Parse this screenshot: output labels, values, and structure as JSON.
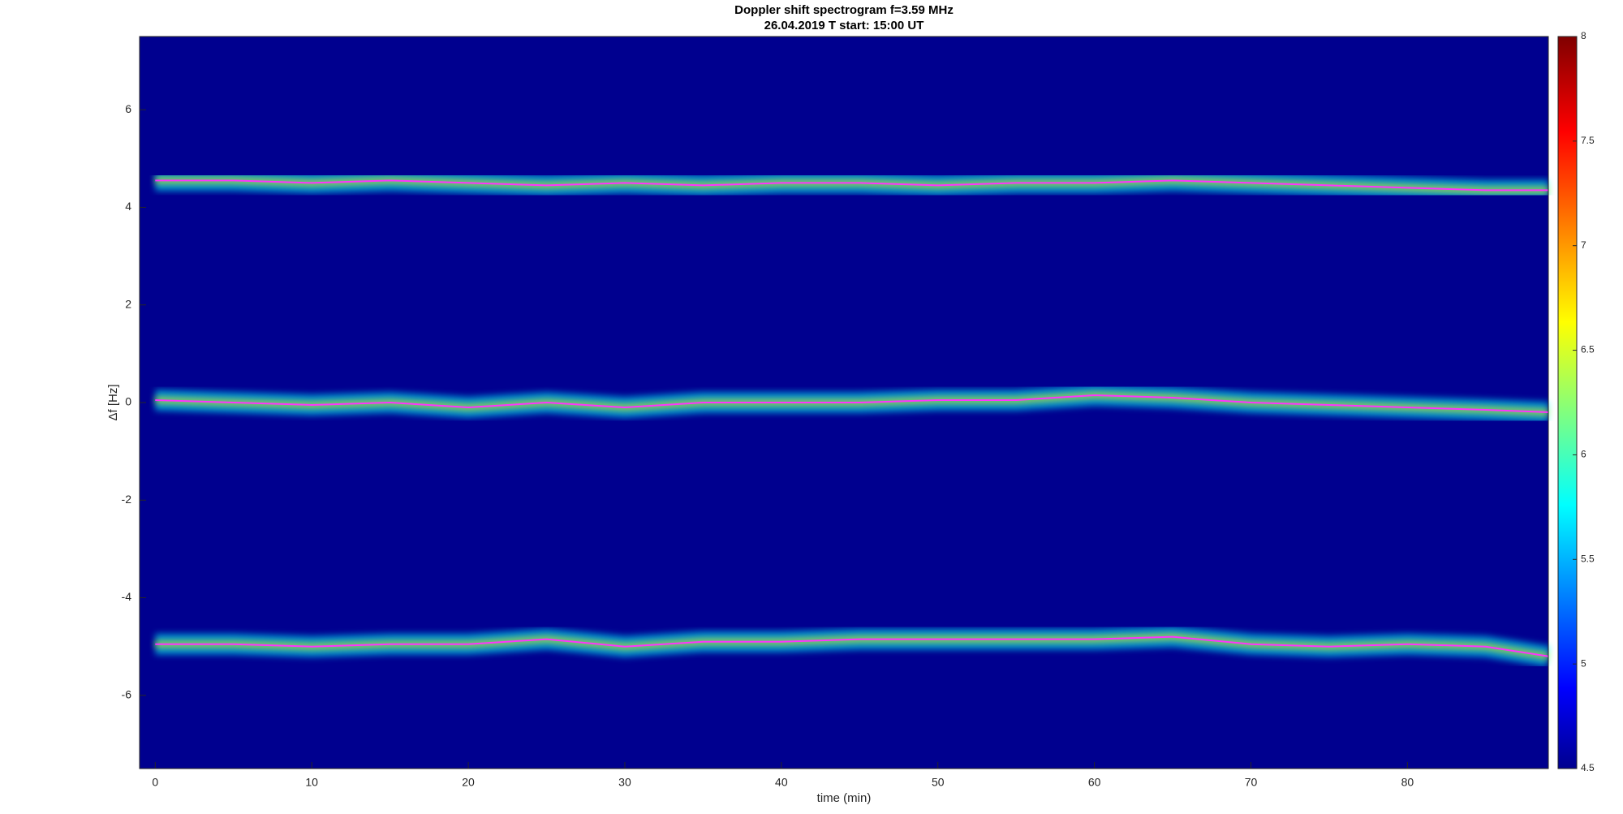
{
  "chart_data": {
    "type": "spectrogram",
    "title": "Doppler shift spectrogram f=3.59 MHz",
    "subtitle": "26.04.2019   T start: 15:00 UT",
    "x_label": "time (min)",
    "y_label": "Δf [Hz]",
    "x": [
      0,
      5,
      10,
      15,
      20,
      25,
      30,
      35,
      40,
      45,
      50,
      55,
      60,
      65,
      70,
      75,
      80,
      85,
      89
    ],
    "series": [
      {
        "color": "#ff33ff",
        "values": [
          4.55,
          4.55,
          4.5,
          4.55,
          4.5,
          4.45,
          4.5,
          4.45,
          4.5,
          4.5,
          4.45,
          4.5,
          4.5,
          4.55,
          4.5,
          4.45,
          4.4,
          4.35,
          4.35
        ]
      },
      {
        "color": "#ff33ff",
        "values": [
          0.05,
          0,
          -0.05,
          0,
          -0.1,
          0,
          -0.1,
          0,
          0,
          0,
          0.05,
          0.05,
          0.15,
          0.1,
          0,
          -0.05,
          -0.1,
          -0.15,
          -0.2
        ]
      },
      {
        "color": "#ff33ff",
        "values": [
          -4.95,
          -4.95,
          -5.0,
          -4.95,
          -4.95,
          -4.85,
          -5.0,
          -4.9,
          -4.9,
          -4.85,
          -4.85,
          -4.85,
          -4.85,
          -4.8,
          -4.95,
          -5.0,
          -4.95,
          -5.0,
          -5.2
        ]
      }
    ],
    "xlim": [
      -1,
      89
    ],
    "ylim": [
      -7.5,
      7.5
    ],
    "xticks": [
      0,
      10,
      20,
      30,
      40,
      50,
      60,
      70,
      80
    ],
    "yticks": [
      -6,
      -4,
      -2,
      0,
      2,
      4,
      6
    ],
    "colormap": "jet",
    "clim": [
      4.5,
      8
    ],
    "cticks": [
      4.5,
      5,
      5.5,
      6,
      6.5,
      7,
      7.5,
      8
    ]
  }
}
